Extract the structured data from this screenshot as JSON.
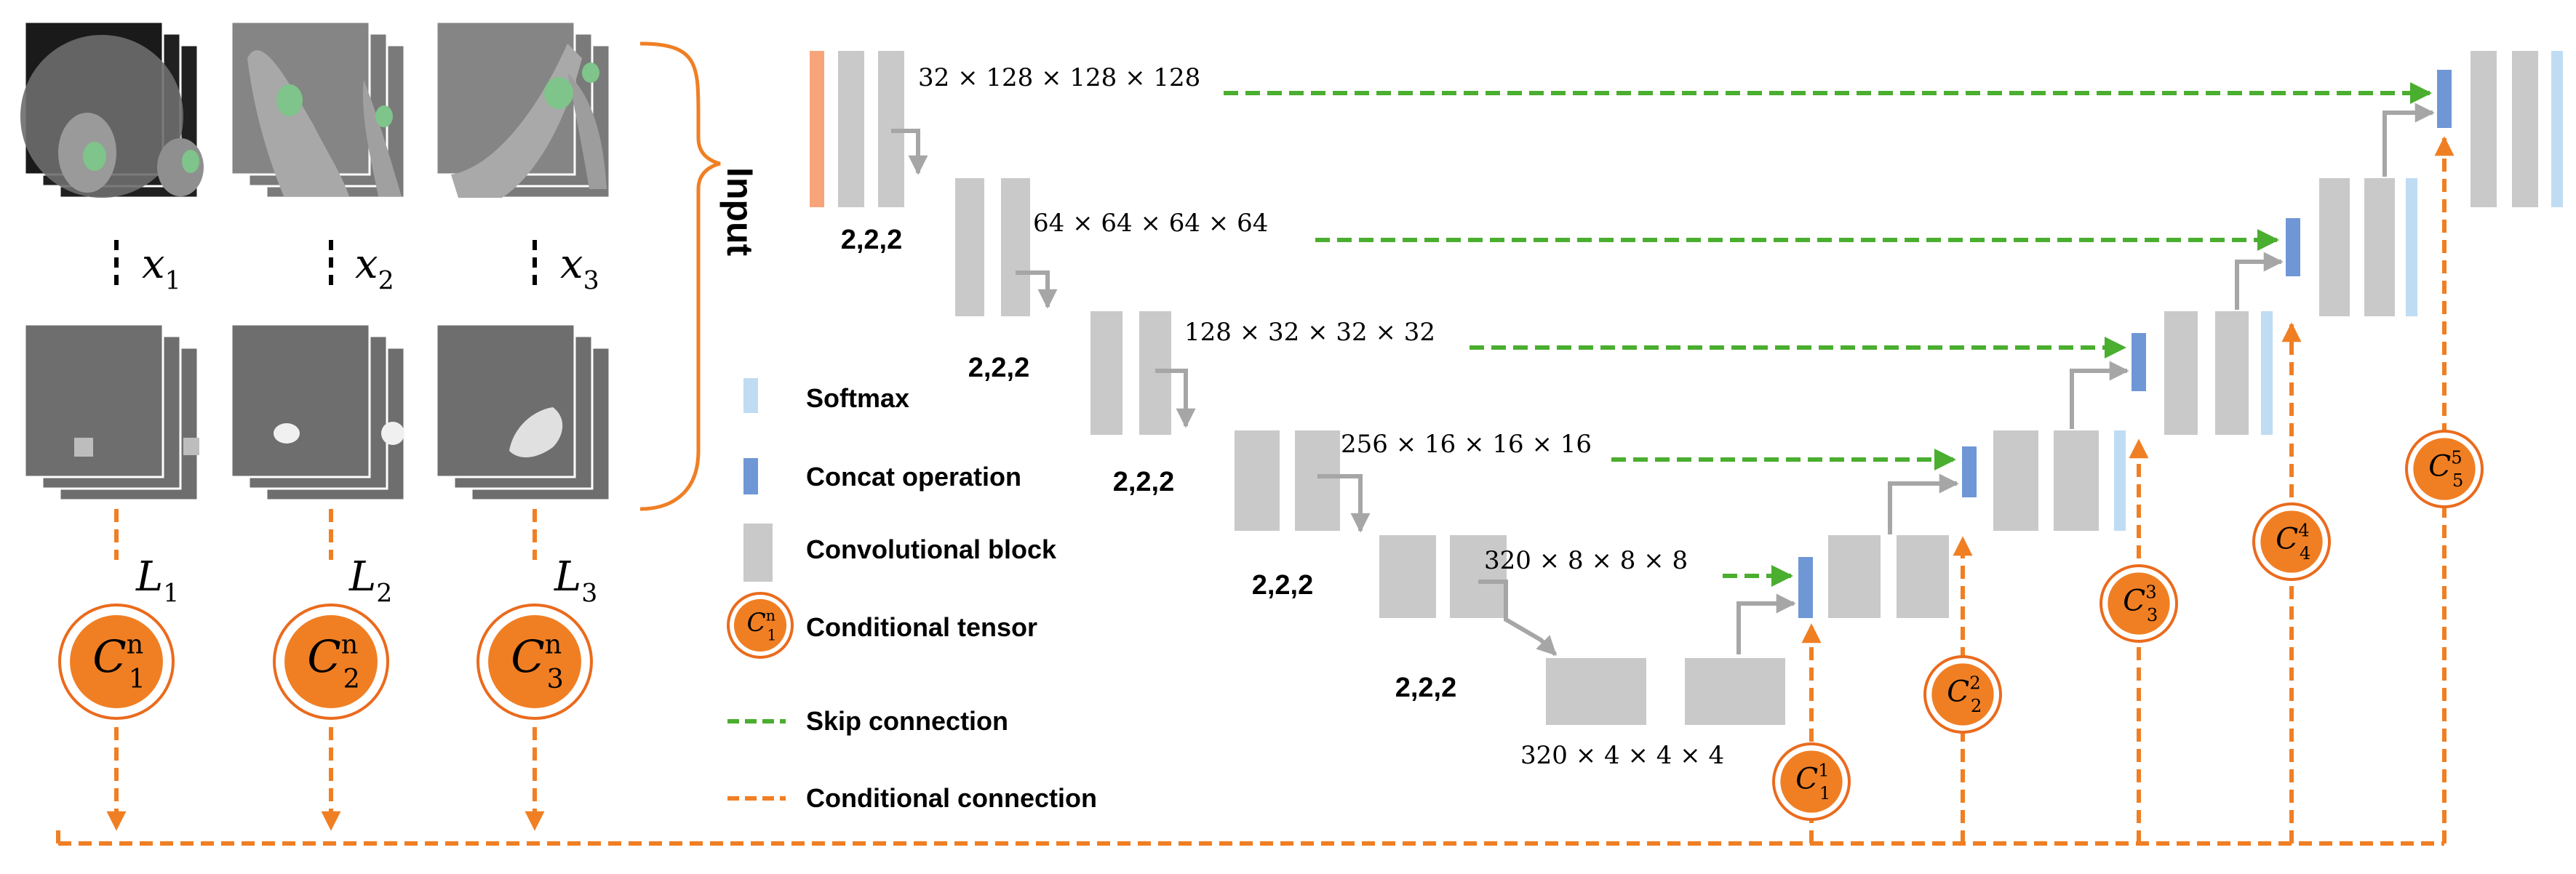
{
  "input_label": "Input",
  "input_cases": [
    {
      "x_name": "x",
      "x_sub": "1",
      "l_name": "L",
      "l_sub": "1",
      "c_sub": "1",
      "c_sup": "n"
    },
    {
      "x_name": "x",
      "x_sub": "2",
      "l_name": "L",
      "l_sub": "2",
      "c_sub": "2",
      "c_sup": "n"
    },
    {
      "x_name": "x",
      "x_sub": "3",
      "l_name": "L",
      "l_sub": "3",
      "c_sub": "3",
      "c_sup": "n"
    }
  ],
  "unet": {
    "skip_dims": [
      "32 × 128 × 128 × 128",
      "64 × 64 × 64 × 64",
      "128 × 32 × 32 × 32",
      "256 × 16 × 16 × 16",
      "320 × 8 × 8 × 8"
    ],
    "bottleneck_dim": "320 × 4 × 4 × 4",
    "pool_labels": [
      "2,2,2",
      "2,2,2",
      "2,2,2",
      "2,2,2",
      "2,2,2"
    ],
    "cond_tensors": [
      {
        "base": "C",
        "sub": "1",
        "sup": "1"
      },
      {
        "base": "C",
        "sub": "2",
        "sup": "2"
      },
      {
        "base": "C",
        "sub": "3",
        "sup": "3"
      },
      {
        "base": "C",
        "sub": "4",
        "sup": "4"
      },
      {
        "base": "C",
        "sub": "5",
        "sup": "5"
      }
    ]
  },
  "legend": {
    "softmax": "Softmax",
    "concat": "Concat operation",
    "conv_block": "Convolutional block",
    "cond_tensor": "Conditional tensor",
    "cond_tensor_symbol": {
      "base": "C",
      "sub": "1",
      "sup": "n"
    },
    "skip": "Skip connection",
    "cond_conn": "Conditional connection"
  },
  "colors": {
    "orange": "#f07f24",
    "orange_ring": "#ea6b1d",
    "green": "#4aae2f",
    "gray_block": "#c9c9c9",
    "concat_blue": "#6f97d6",
    "softmax_blue": "#bfdcf3",
    "input_orange": "#f8a47a",
    "arrow_gray": "#a6a6a6"
  }
}
